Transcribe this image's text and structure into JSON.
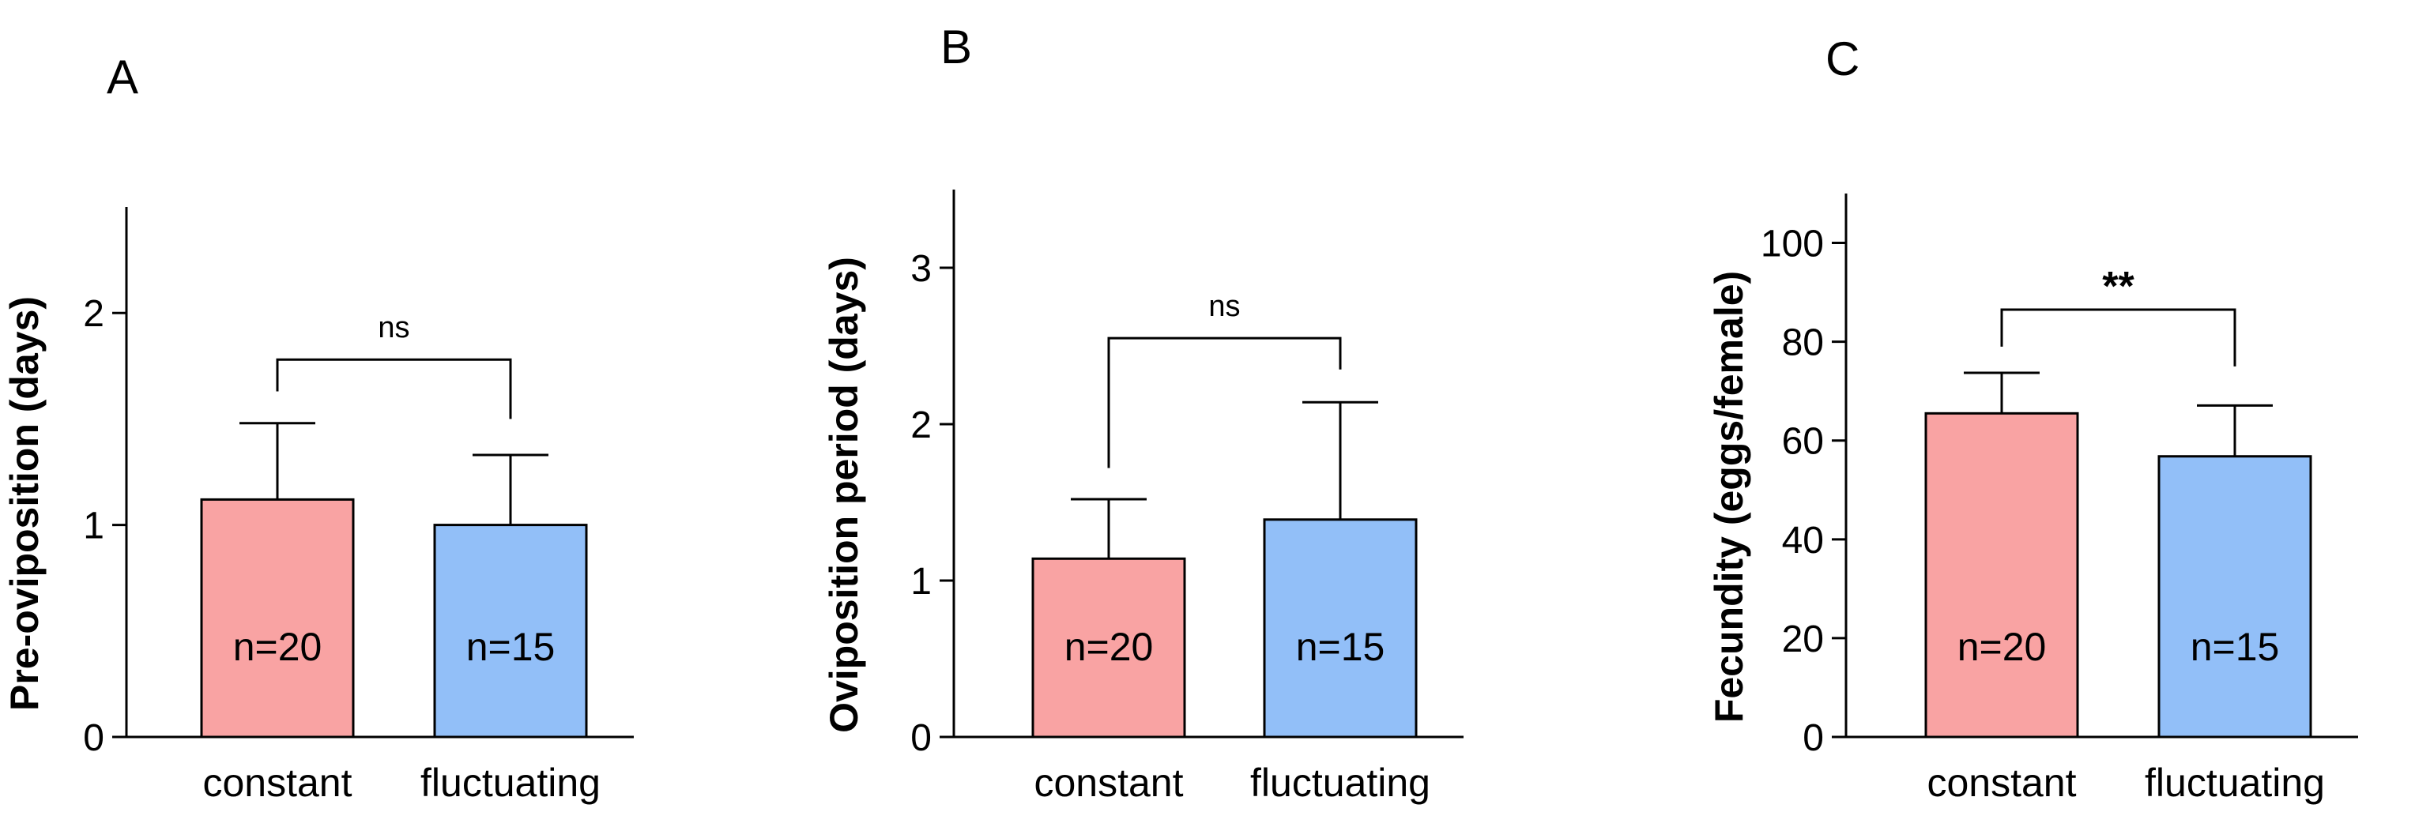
{
  "chart_data": [
    {
      "type": "bar",
      "panel_label": "A",
      "categories": [
        "constant",
        "fluctuating"
      ],
      "values": [
        1.12,
        1.0
      ],
      "errors": [
        0.36,
        0.33
      ],
      "n_labels": [
        "n=20",
        "n=15"
      ],
      "colors": [
        "#f9a3a3",
        "#92bff8"
      ],
      "ylabel": "Pre-oviposition (days)",
      "ylim": [
        0,
        2.5
      ],
      "yticks": [
        0,
        1,
        2
      ],
      "ytick_labels": [
        "0",
        "1",
        "2"
      ],
      "grid": false,
      "significance": {
        "label": "ns",
        "bracket_y": 1.78,
        "left_y": 1.63,
        "right_y": 1.5
      }
    },
    {
      "type": "bar",
      "panel_label": "B",
      "categories": [
        "constant",
        "fluctuating"
      ],
      "values": [
        1.14,
        1.39
      ],
      "errors": [
        0.38,
        0.75
      ],
      "n_labels": [
        "n=20",
        "n=15"
      ],
      "colors": [
        "#f9a3a3",
        "#92bff8"
      ],
      "ylabel": "Oviposition period (days)",
      "ylim": [
        0,
        3.5
      ],
      "yticks": [
        0,
        1,
        2,
        3
      ],
      "ytick_labels": [
        "0",
        "1",
        "2",
        "3"
      ],
      "grid": false,
      "significance": {
        "label": "ns",
        "bracket_y": 2.55,
        "left_y": 1.72,
        "right_y": 2.35
      }
    },
    {
      "type": "bar",
      "panel_label": "C",
      "categories": [
        "constant",
        "fluctuating"
      ],
      "values": [
        65.5,
        56.8
      ],
      "errors": [
        8.2,
        10.3
      ],
      "n_labels": [
        "n=20",
        "n=15"
      ],
      "colors": [
        "#f9a3a3",
        "#92bff8"
      ],
      "ylabel": "Fecundity (eggs/female)",
      "ylim": [
        0,
        110
      ],
      "yticks": [
        0,
        20,
        40,
        60,
        80,
        100
      ],
      "ytick_labels": [
        "0",
        "20",
        "40",
        "60",
        "80",
        "100"
      ],
      "grid": false,
      "significance": {
        "label": "**",
        "bracket_y": 86.5,
        "left_y": 79,
        "right_y": 75
      }
    }
  ]
}
